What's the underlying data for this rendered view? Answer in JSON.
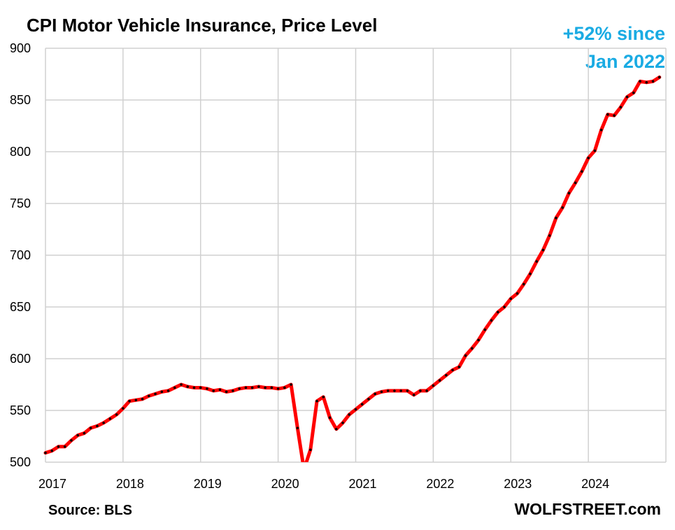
{
  "chart_data": {
    "type": "line",
    "title": "CPI Motor Vehicle Insurance, Price Level",
    "annotation": [
      "+52% since",
      "Jan 2022"
    ],
    "source": "Source: BLS",
    "brand": "WOLFSTREET.com",
    "xlabel": "",
    "ylabel": "",
    "ylim": [
      500,
      900
    ],
    "xlim": [
      2017,
      2025
    ],
    "y_ticks": [
      500,
      550,
      600,
      650,
      700,
      750,
      800,
      850,
      900
    ],
    "x_ticks": [
      2017,
      2018,
      2019,
      2020,
      2021,
      2022,
      2023,
      2024
    ],
    "grid": true,
    "colors": {
      "line": "#ff0000",
      "markers": "#000000",
      "annotation": "#1aabe3",
      "grid": "#d0d0d0"
    },
    "series": [
      {
        "x": [
          "2017-01",
          "2017-02",
          "2017-03",
          "2017-04",
          "2017-05",
          "2017-06",
          "2017-07",
          "2017-08",
          "2017-09",
          "2017-10",
          "2017-11",
          "2017-12",
          "2018-01",
          "2018-02",
          "2018-03",
          "2018-04",
          "2018-05",
          "2018-06",
          "2018-07",
          "2018-08",
          "2018-09",
          "2018-10",
          "2018-11",
          "2018-12",
          "2019-01",
          "2019-02",
          "2019-03",
          "2019-04",
          "2019-05",
          "2019-06",
          "2019-07",
          "2019-08",
          "2019-09",
          "2019-10",
          "2019-11",
          "2019-12",
          "2020-01",
          "2020-02",
          "2020-03",
          "2020-04",
          "2020-05",
          "2020-06",
          "2020-07",
          "2020-08",
          "2020-09",
          "2020-10",
          "2020-11",
          "2020-12",
          "2021-01",
          "2021-02",
          "2021-03",
          "2021-04",
          "2021-05",
          "2021-06",
          "2021-07",
          "2021-08",
          "2021-09",
          "2021-10",
          "2021-11",
          "2021-12",
          "2022-01",
          "2022-02",
          "2022-03",
          "2022-04",
          "2022-05",
          "2022-06",
          "2022-07",
          "2022-08",
          "2022-09",
          "2022-10",
          "2022-11",
          "2022-12",
          "2023-01",
          "2023-02",
          "2023-03",
          "2023-04",
          "2023-05",
          "2023-06",
          "2023-07",
          "2023-08",
          "2023-09",
          "2023-10",
          "2023-11",
          "2023-12",
          "2024-01",
          "2024-02",
          "2024-03",
          "2024-04",
          "2024-05",
          "2024-06",
          "2024-07",
          "2024-08",
          "2024-09",
          "2024-10",
          "2024-11",
          "2024-12"
        ],
        "values": [
          509,
          511,
          515,
          515,
          521,
          526,
          528,
          533,
          535,
          538,
          542,
          546,
          552,
          559,
          560,
          561,
          564,
          566,
          568,
          569,
          572,
          575,
          573,
          572,
          572,
          571,
          569,
          570,
          568,
          569,
          571,
          572,
          572,
          573,
          572,
          572,
          571,
          572,
          575,
          533,
          493,
          512,
          559,
          563,
          543,
          532,
          538,
          546,
          551,
          556,
          561,
          566,
          568,
          569,
          569,
          569,
          569,
          565,
          569,
          569,
          574,
          579,
          584,
          589,
          592,
          603,
          610,
          618,
          628,
          637,
          645,
          650,
          658,
          663,
          672,
          682,
          694,
          705,
          719,
          736,
          746,
          760,
          770,
          781,
          794,
          801,
          821,
          836,
          835,
          843,
          853,
          857,
          868,
          867,
          868,
          872
        ]
      }
    ]
  }
}
